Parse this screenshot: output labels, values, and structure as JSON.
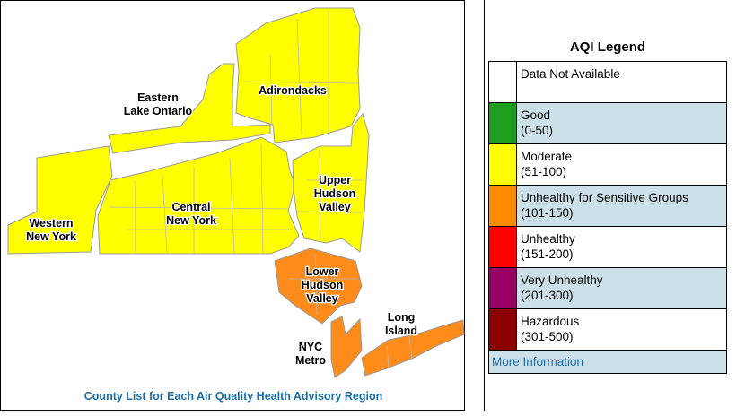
{
  "map": {
    "regions": [
      {
        "key": "western_new_york",
        "lines": [
          "Western",
          "New York"
        ],
        "color": "#ffff00"
      },
      {
        "key": "eastern_lake_ontario",
        "lines": [
          "Eastern",
          "Lake Ontario"
        ],
        "color": "#ffff00"
      },
      {
        "key": "adirondacks",
        "lines": [
          "Adirondacks"
        ],
        "color": "#ffff00"
      },
      {
        "key": "central_new_york",
        "lines": [
          "Central",
          "New York"
        ],
        "color": "#ffff00"
      },
      {
        "key": "upper_hudson_valley",
        "lines": [
          "Upper",
          "Hudson",
          "Valley"
        ],
        "color": "#ffff00"
      },
      {
        "key": "lower_hudson_valley",
        "lines": [
          "Lower",
          "Hudson",
          "Valley"
        ],
        "color": "#ff8c1a"
      },
      {
        "key": "nyc_metro",
        "lines": [
          "NYC",
          "Metro"
        ],
        "color": "#ff8c1a"
      },
      {
        "key": "long_island",
        "lines": [
          "Long",
          "Island"
        ],
        "color": "#ff8c1a"
      }
    ],
    "footer_link": "County List for Each Air Quality Health Advisory Region"
  },
  "legend": {
    "title": "AQI Legend",
    "items": [
      {
        "label": "Data Not Available",
        "range": "",
        "color": "#ffffff"
      },
      {
        "label": "Good",
        "range": "(0-50)",
        "color": "#1e9e1e"
      },
      {
        "label": "Moderate",
        "range": "(51-100)",
        "color": "#ffff00"
      },
      {
        "label": "Unhealthy for Sensitive Groups",
        "range": "(101-150)",
        "color": "#ff8c00"
      },
      {
        "label": "Unhealthy",
        "range": "(151-200)",
        "color": "#ff0000"
      },
      {
        "label": "Very Unhealthy",
        "range": "(201-300)",
        "color": "#990066"
      },
      {
        "label": "Hazardous",
        "range": "(301-500)",
        "color": "#8b0000"
      }
    ],
    "more_info": "More Information"
  }
}
